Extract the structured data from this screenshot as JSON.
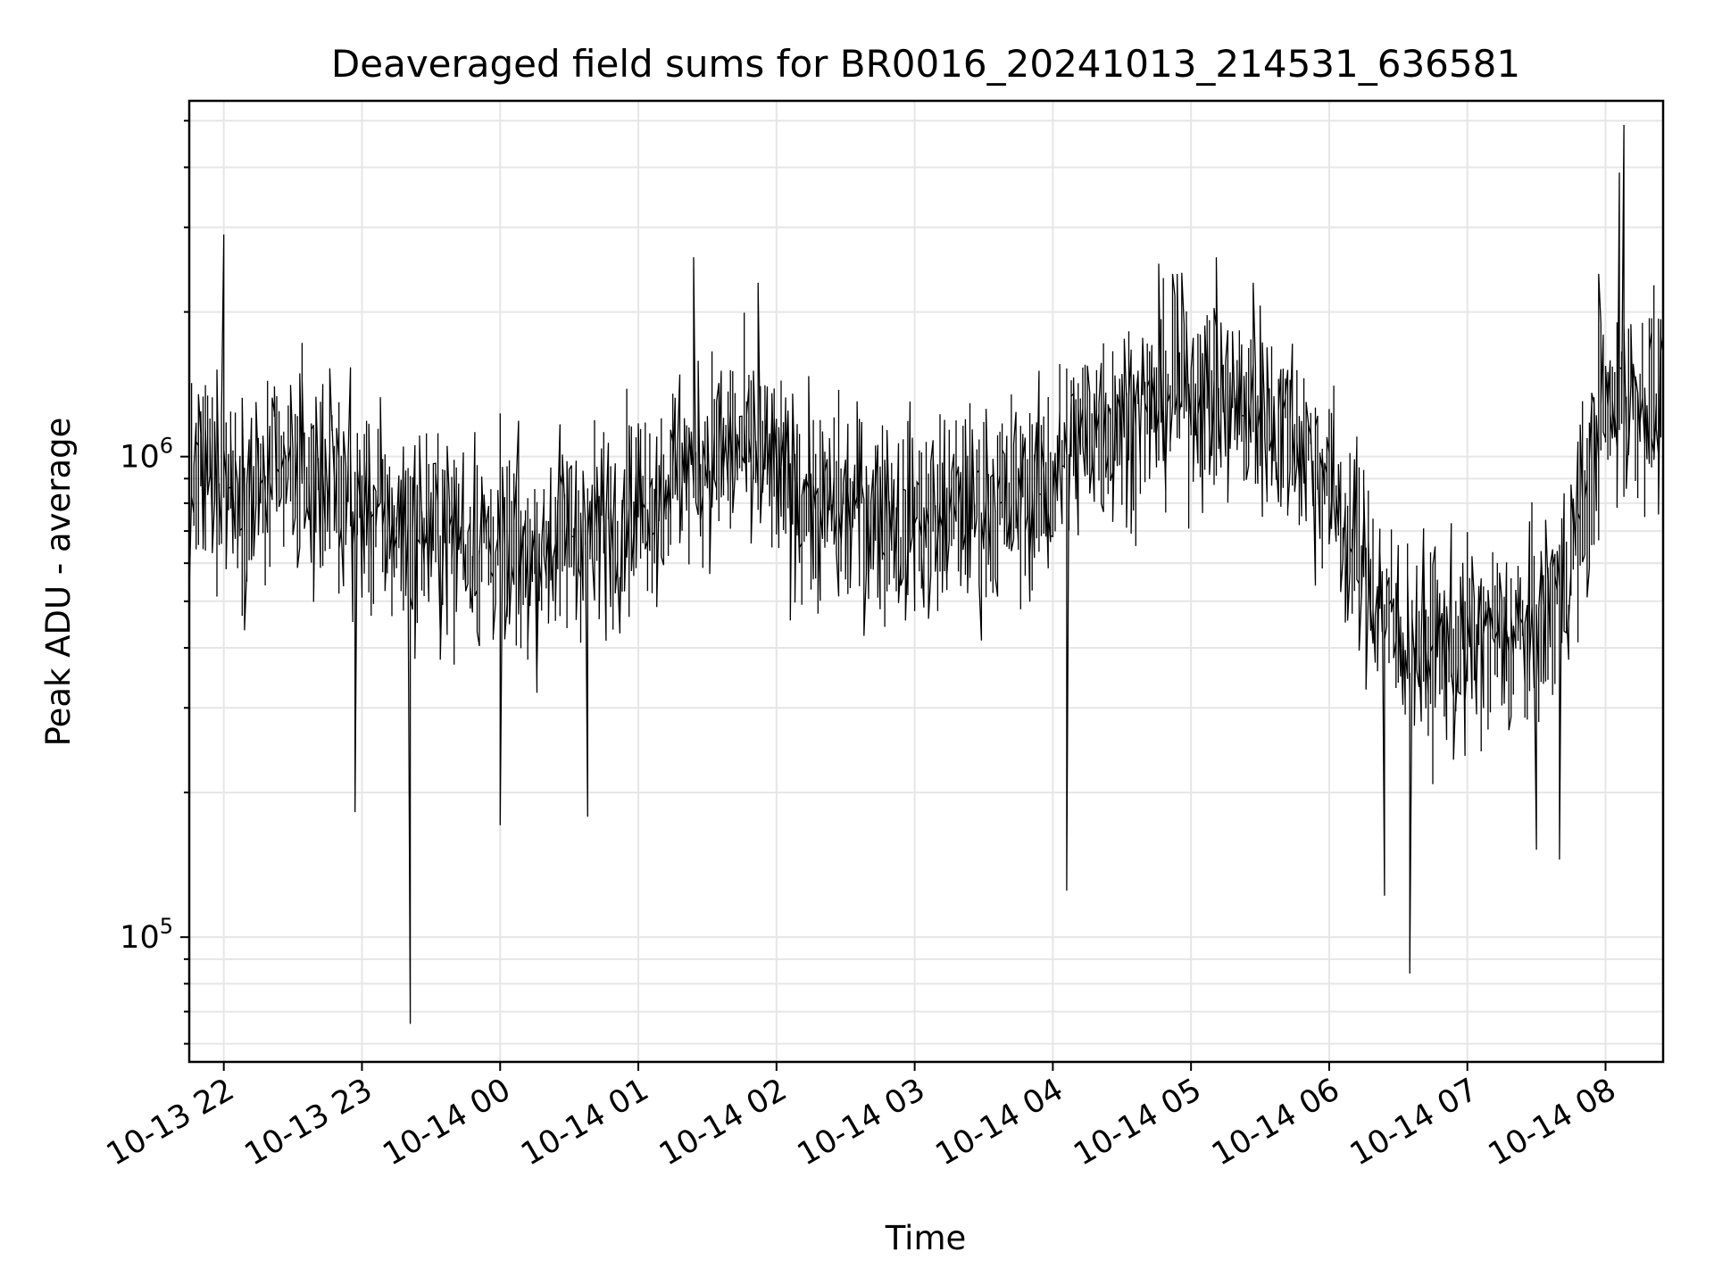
{
  "chart_data": {
    "type": "line",
    "title": "Deaveraged field sums for BR0016_20241013_214531_636581",
    "xlabel": "Time",
    "ylabel": "Peak ADU - average",
    "yscale": "log",
    "grid": true,
    "legend": "none",
    "line_color": "#000000",
    "xlim": [
      "2024-10-13T21:45",
      "2024-10-14T08:25"
    ],
    "ylim": [
      55000,
      5500000
    ],
    "x_ticks": [
      "2024-10-13T22:00",
      "2024-10-13T23:00",
      "2024-10-14T00:00",
      "2024-10-14T01:00",
      "2024-10-14T02:00",
      "2024-10-14T03:00",
      "2024-10-14T04:00",
      "2024-10-14T05:00",
      "2024-10-14T06:00",
      "2024-10-14T07:00",
      "2024-10-14T08:00"
    ],
    "x_tick_labels": [
      "10-13 22",
      "10-13 23",
      "10-14 00",
      "10-14 01",
      "10-14 02",
      "10-14 03",
      "10-14 04",
      "10-14 05",
      "10-14 06",
      "10-14 07",
      "10-14 08"
    ],
    "y_ticks": [
      {
        "base": "10",
        "exp": "5",
        "value": 100000
      },
      {
        "base": "10",
        "exp": "6",
        "value": 1000000
      }
    ],
    "series": [
      {
        "values_note_excluded": false,
        "x": [
          "2024-10-13T21:45",
          "2024-10-13T22:00",
          "2024-10-13T22:15",
          "2024-10-13T22:30",
          "2024-10-13T22:45",
          "2024-10-13T23:00",
          "2024-10-13T23:15",
          "2024-10-13T23:30",
          "2024-10-13T23:45",
          "2024-10-14T00:00",
          "2024-10-14T00:15",
          "2024-10-14T00:30",
          "2024-10-14T00:45",
          "2024-10-14T01:00",
          "2024-10-14T01:15",
          "2024-10-14T01:30",
          "2024-10-14T01:45",
          "2024-10-14T02:00",
          "2024-10-14T02:15",
          "2024-10-14T02:30",
          "2024-10-14T02:45",
          "2024-10-14T03:00",
          "2024-10-14T03:15",
          "2024-10-14T03:30",
          "2024-10-14T03:45",
          "2024-10-14T04:00",
          "2024-10-14T04:15",
          "2024-10-14T04:30",
          "2024-10-14T04:45",
          "2024-10-14T05:00",
          "2024-10-14T05:15",
          "2024-10-14T05:30",
          "2024-10-14T05:45",
          "2024-10-14T06:00",
          "2024-10-14T06:15",
          "2024-10-14T06:30",
          "2024-10-14T06:45",
          "2024-10-14T07:00",
          "2024-10-14T07:15",
          "2024-10-14T07:30",
          "2024-10-14T07:45",
          "2024-10-14T08:00",
          "2024-10-14T08:15",
          "2024-10-14T08:25"
        ],
        "values": [
          850000,
          950000,
          820000,
          950000,
          900000,
          780000,
          720000,
          700000,
          680000,
          640000,
          620000,
          700000,
          720000,
          800000,
          900000,
          1000000,
          1050000,
          900000,
          800000,
          780000,
          760000,
          740000,
          760000,
          780000,
          820000,
          900000,
          1150000,
          1200000,
          1300000,
          1350000,
          1300000,
          1250000,
          1100000,
          900000,
          600000,
          430000,
          390000,
          400000,
          420000,
          420000,
          600000,
          1200000,
          1350000,
          1250000
        ],
        "minima": [
          [
            "2024-10-13T23:21",
            66000
          ],
          [
            "2024-10-14T04:07",
            125000
          ],
          [
            "2024-10-14T06:24",
            122000
          ],
          [
            "2024-10-14T06:36",
            84000
          ],
          [
            "2024-10-14T07:30",
            152000
          ],
          [
            "2024-10-14T07:41",
            145000
          ],
          [
            "2024-10-13T22:58",
            182000
          ],
          [
            "2024-10-14T00:38",
            178000
          ],
          [
            "2024-10-14T00:01",
            171000
          ]
        ],
        "maxima": [
          [
            "2024-10-13T22:00",
            2900000
          ],
          [
            "2024-10-14T01:25",
            2600000
          ],
          [
            "2024-10-14T01:53",
            2300000
          ],
          [
            "2024-10-14T04:53",
            2400000
          ],
          [
            "2024-10-14T05:12",
            2600000
          ],
          [
            "2024-10-14T05:28",
            2300000
          ],
          [
            "2024-10-14T08:08",
            4900000
          ],
          [
            "2024-10-14T08:06",
            3900000
          ],
          [
            "2024-10-14T07:58",
            2400000
          ]
        ]
      }
    ]
  }
}
